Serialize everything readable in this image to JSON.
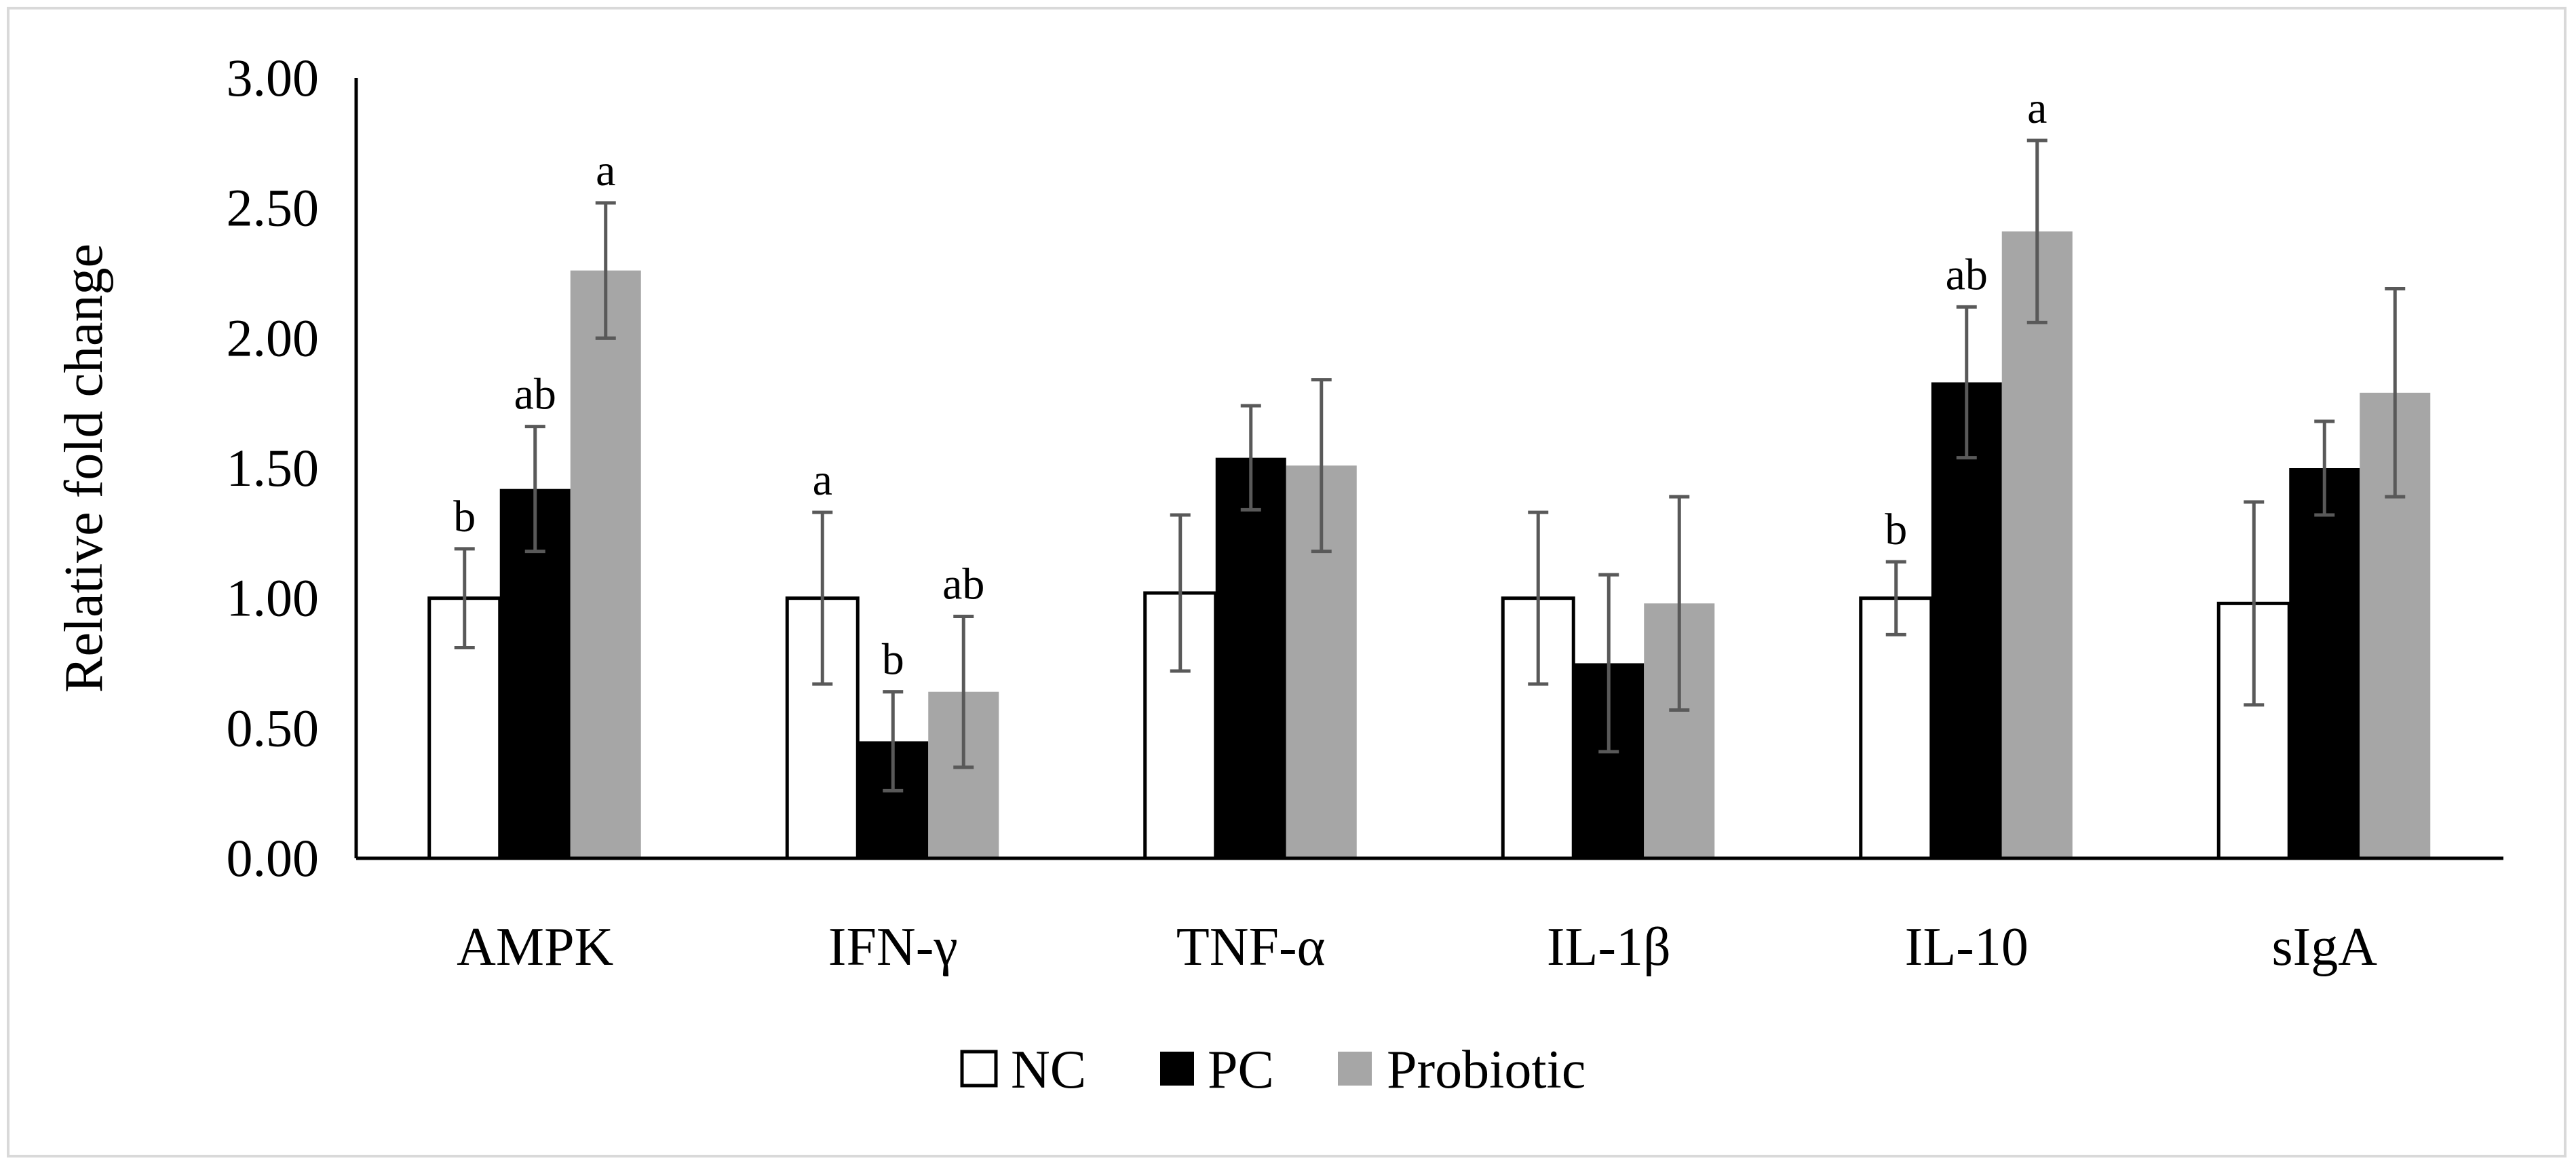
{
  "chart_data": {
    "type": "bar",
    "title": "",
    "xlabel": "",
    "ylabel": "Relative fold change",
    "ylim": [
      0,
      3
    ],
    "yticks": [
      "0.00",
      "0.50",
      "1.00",
      "1.50",
      "2.00",
      "2.50",
      "3.00"
    ],
    "grid": false,
    "legend_position": "bottom-center",
    "categories": [
      "AMPK",
      "IFN-γ",
      "TNF-α",
      "IL-1β",
      "IL-10",
      "sIgA"
    ],
    "series": [
      {
        "name": "NC",
        "color": "#ffffff",
        "values": [
          1.0,
          1.0,
          1.02,
          1.0,
          1.0,
          0.98
        ],
        "errors": [
          0.19,
          0.33,
          0.3,
          0.33,
          0.14,
          0.39
        ],
        "labels": [
          "b",
          "a",
          "",
          "",
          "b",
          ""
        ]
      },
      {
        "name": "PC",
        "color": "#000000",
        "values": [
          1.42,
          0.45,
          1.54,
          0.75,
          1.83,
          1.5
        ],
        "errors": [
          0.24,
          0.19,
          0.2,
          0.34,
          0.29,
          0.18
        ],
        "labels": [
          "ab",
          "b",
          "",
          "",
          "ab",
          ""
        ]
      },
      {
        "name": "Probiotic",
        "color": "#a6a6a6",
        "values": [
          2.26,
          0.64,
          1.51,
          0.98,
          2.41,
          1.79
        ],
        "errors": [
          0.26,
          0.29,
          0.33,
          0.41,
          0.35,
          0.4
        ],
        "labels": [
          "a",
          "ab",
          "",
          "",
          "a",
          ""
        ]
      }
    ]
  }
}
